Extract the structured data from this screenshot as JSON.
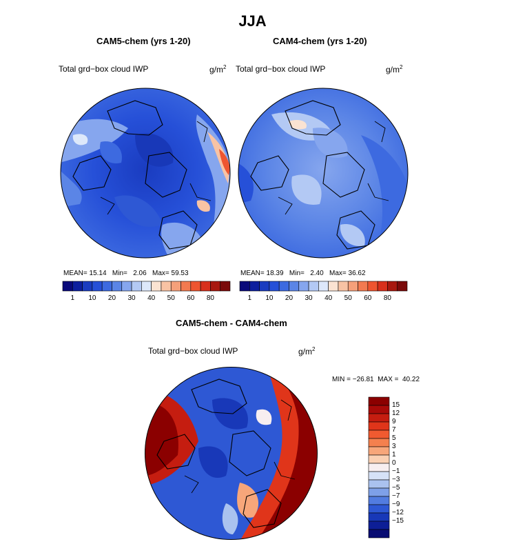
{
  "title": "JJA",
  "panels": [
    {
      "title": "CAM5-chem (yrs 1-20)",
      "var_label": "Total grd−box cloud IWP",
      "units": "g/m",
      "units_sup": "2",
      "stats": {
        "mean_label": "MEAN=",
        "mean": "15.14",
        "min_label": "Min=",
        "min": "2.06",
        "max_label": "Max=",
        "max": "59.53"
      }
    },
    {
      "title": "CAM4-chem (yrs 1-20)",
      "var_label": "Total grd−box cloud IWP",
      "units": "g/m",
      "units_sup": "2",
      "stats": {
        "mean_label": "MEAN=",
        "mean": "18.39",
        "min_label": "Min=",
        "min": "2.40",
        "max_label": "Max=",
        "max": "36.62"
      }
    }
  ],
  "diff_panel": {
    "title": "CAM5-chem - CAM4-chem",
    "var_label": "Total grd−box cloud IWP",
    "units": "g/m",
    "units_sup": "2",
    "minmax": "MIN = −26.81  MAX =  40.22"
  },
  "abs_colorbar": {
    "colors": [
      "#0a0a7a",
      "#0d1f9e",
      "#1a3cc0",
      "#2650d8",
      "#3d6ae0",
      "#5b85e6",
      "#86a6ee",
      "#b3c9f4",
      "#dde8fa",
      "#fbe3d2",
      "#f8c3a4",
      "#f5a07a",
      "#f27a50",
      "#ee5530",
      "#d8301c",
      "#a8180f",
      "#7a0a0a"
    ],
    "ticks": [
      "1",
      "10",
      "20",
      "30",
      "40",
      "50",
      "60",
      "80"
    ]
  },
  "diff_colorbar": {
    "colors": [
      "#8b0000",
      "#a80a08",
      "#c51d10",
      "#e0351a",
      "#f05a30",
      "#f4804e",
      "#f7a67a",
      "#fad0b3",
      "#f7eef0",
      "#d6e2f7",
      "#aac2ef",
      "#7ea0e8",
      "#527ce0",
      "#2e58d4",
      "#1838b8",
      "#0d1e96",
      "#080c72"
    ],
    "labels": [
      "15",
      "12",
      "9",
      "7",
      "5",
      "3",
      "1",
      "0",
      "−1",
      "−3",
      "−5",
      "−7",
      "−9",
      "−12",
      "−15"
    ]
  }
}
